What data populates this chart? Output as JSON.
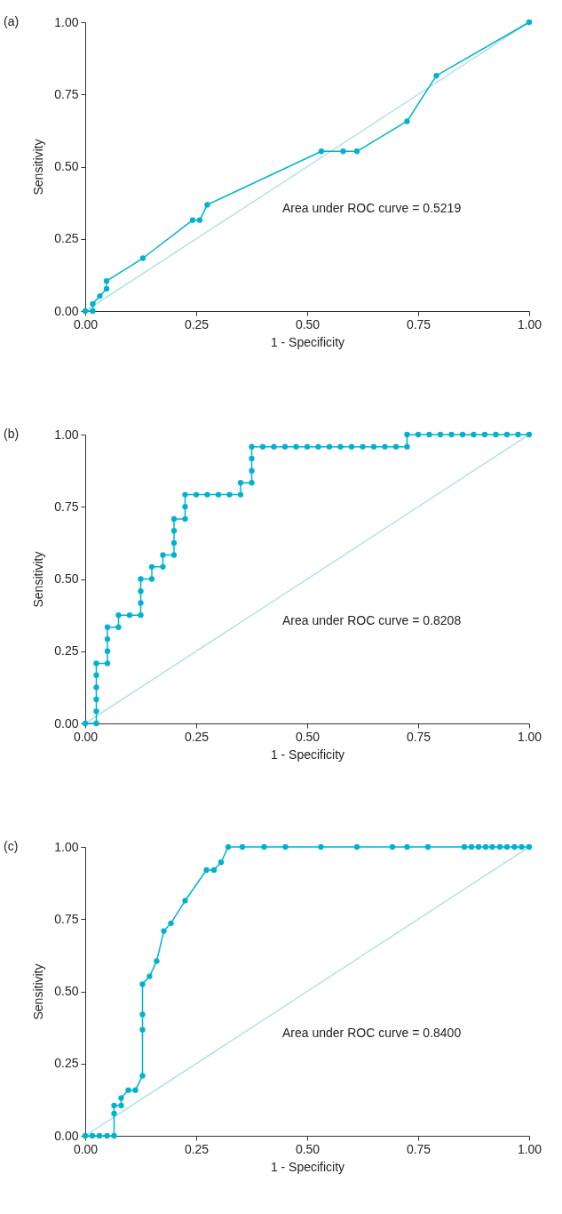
{
  "chart_data": [
    {
      "type": "line",
      "title": "(a)",
      "xlabel": "1 - Specificity",
      "ylabel": "Sensitivity",
      "annotations": [
        "Area under ROC curve = 0.5219"
      ],
      "xlim": [
        0,
        1
      ],
      "ylim": [
        0,
        1
      ],
      "xticks": [
        {
          "value": 0,
          "label": "0.00"
        },
        {
          "value": 0.25,
          "label": "0.25"
        },
        {
          "value": 0.5,
          "label": "0.50"
        },
        {
          "value": 0.75,
          "label": "0.75"
        },
        {
          "value": 1,
          "label": "1.00"
        }
      ],
      "yticks": [
        {
          "value": 0,
          "label": "0.00"
        },
        {
          "value": 0.25,
          "label": "0.25"
        },
        {
          "value": 0.5,
          "label": "0.50"
        },
        {
          "value": 0.75,
          "label": "0.75"
        },
        {
          "value": 1,
          "label": "1.00"
        }
      ],
      "grid": false,
      "series": [
        {
          "color": "#b2e2ea",
          "marker": "none",
          "x": [
            0,
            1
          ],
          "values": [
            0,
            1
          ]
        },
        {
          "color": "#00b2d0",
          "marker": "circle",
          "x": [
            0,
            0.017,
            0.017,
            0.033,
            0.048,
            0.048,
            0.13,
            0.242,
            0.258,
            0.275,
            0.532,
            0.581,
            0.612,
            0.725,
            0.791,
            1
          ],
          "values": [
            0,
            0,
            0.025,
            0.052,
            0.077,
            0.104,
            0.183,
            0.315,
            0.315,
            0.368,
            0.553,
            0.553,
            0.553,
            0.657,
            0.815,
            1
          ]
        }
      ]
    },
    {
      "type": "line",
      "title": "(b)",
      "xlabel": "1 - Specificity",
      "ylabel": "Sensitivity",
      "annotations": [
        "Area under ROC curve = 0.8208"
      ],
      "xlim": [
        0,
        1
      ],
      "ylim": [
        0,
        1
      ],
      "xticks": [
        {
          "value": 0,
          "label": "0.00"
        },
        {
          "value": 0.25,
          "label": "0.25"
        },
        {
          "value": 0.5,
          "label": "0.50"
        },
        {
          "value": 0.75,
          "label": "0.75"
        },
        {
          "value": 1,
          "label": "1.00"
        }
      ],
      "yticks": [
        {
          "value": 0,
          "label": "0.00"
        },
        {
          "value": 0.25,
          "label": "0.25"
        },
        {
          "value": 0.5,
          "label": "0.50"
        },
        {
          "value": 0.75,
          "label": "0.75"
        },
        {
          "value": 1,
          "label": "1.00"
        }
      ],
      "grid": false,
      "series": [
        {
          "color": "#b2e2ea",
          "marker": "none",
          "x": [
            0,
            1
          ],
          "values": [
            0,
            1
          ]
        },
        {
          "color": "#00b2d0",
          "marker": "circle",
          "x": [
            0,
            0.025,
            0.025,
            0.025,
            0.025,
            0.025,
            0.025,
            0.05,
            0.05,
            0.05,
            0.05,
            0.075,
            0.075,
            0.1,
            0.125,
            0.125,
            0.125,
            0.125,
            0.15,
            0.15,
            0.175,
            0.175,
            0.2,
            0.2,
            0.2,
            0.2,
            0.225,
            0.225,
            0.225,
            0.25,
            0.275,
            0.3,
            0.325,
            0.35,
            0.35,
            0.375,
            0.375,
            0.375,
            0.375,
            0.4,
            0.425,
            0.45,
            0.475,
            0.5,
            0.525,
            0.55,
            0.575,
            0.6,
            0.625,
            0.65,
            0.675,
            0.7,
            0.725,
            0.725,
            0.75,
            0.775,
            0.8,
            0.825,
            0.85,
            0.875,
            0.9,
            0.925,
            0.95,
            0.975,
            1
          ],
          "values": [
            0,
            0,
            0.042,
            0.083,
            0.125,
            0.167,
            0.208,
            0.208,
            0.25,
            0.292,
            0.333,
            0.333,
            0.375,
            0.375,
            0.375,
            0.417,
            0.458,
            0.5,
            0.5,
            0.542,
            0.542,
            0.583,
            0.583,
            0.625,
            0.667,
            0.708,
            0.708,
            0.75,
            0.792,
            0.792,
            0.792,
            0.792,
            0.792,
            0.792,
            0.833,
            0.833,
            0.875,
            0.917,
            0.958,
            0.958,
            0.958,
            0.958,
            0.958,
            0.958,
            0.958,
            0.958,
            0.958,
            0.958,
            0.958,
            0.958,
            0.958,
            0.958,
            0.958,
            1,
            1,
            1,
            1,
            1,
            1,
            1,
            1,
            1,
            1,
            1,
            1
          ]
        }
      ]
    },
    {
      "type": "line",
      "title": "(c)",
      "xlabel": "1 - Specificity",
      "ylabel": "Sensitivity",
      "annotations": [
        "Area under ROC curve = 0.8400"
      ],
      "xlim": [
        0,
        1
      ],
      "ylim": [
        0,
        1
      ],
      "xticks": [
        {
          "value": 0,
          "label": "0.00"
        },
        {
          "value": 0.25,
          "label": "0.25"
        },
        {
          "value": 0.5,
          "label": "0.50"
        },
        {
          "value": 0.75,
          "label": "0.75"
        },
        {
          "value": 1,
          "label": "1.00"
        }
      ],
      "yticks": [
        {
          "value": 0,
          "label": "0.00"
        },
        {
          "value": 0.25,
          "label": "0.25"
        },
        {
          "value": 0.5,
          "label": "0.50"
        },
        {
          "value": 0.75,
          "label": "0.75"
        },
        {
          "value": 1,
          "label": "1.00"
        }
      ],
      "grid": false,
      "series": [
        {
          "color": "#b2e2ea",
          "marker": "none",
          "x": [
            0,
            1
          ],
          "values": [
            0,
            1
          ]
        },
        {
          "color": "#00b2d0",
          "marker": "circle",
          "x": [
            0,
            0.016,
            0.032,
            0.049,
            0.065,
            0.065,
            0.065,
            0.081,
            0.081,
            0.097,
            0.113,
            0.129,
            0.129,
            0.129,
            0.129,
            0.145,
            0.161,
            0.177,
            0.193,
            0.225,
            0.273,
            0.29,
            0.306,
            0.322,
            0.354,
            0.403,
            0.451,
            0.531,
            0.612,
            0.692,
            0.725,
            0.772,
            0.854,
            0.87,
            0.886,
            0.902,
            0.917,
            0.934,
            0.95,
            0.967,
            0.983,
            1
          ],
          "values": [
            0,
            0,
            0,
            0,
            0,
            0.077,
            0.105,
            0.105,
            0.131,
            0.158,
            0.158,
            0.208,
            0.367,
            0.42,
            0.525,
            0.552,
            0.605,
            0.709,
            0.736,
            0.814,
            0.92,
            0.92,
            0.947,
            1,
            1,
            1,
            1,
            1,
            1,
            1,
            1,
            1,
            1,
            1,
            1,
            1,
            1,
            1,
            1,
            1,
            1,
            1
          ]
        }
      ]
    }
  ]
}
